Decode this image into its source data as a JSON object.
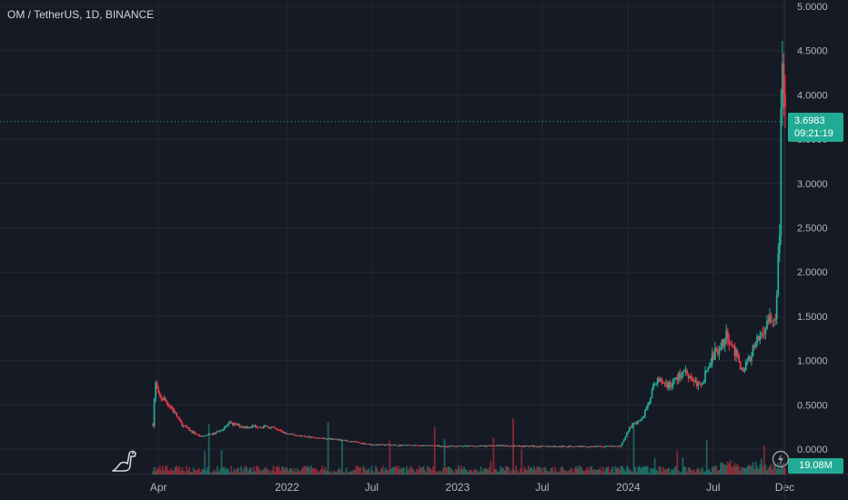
{
  "title": "OM / TetherUS, 1D, BINANCE",
  "last_price": "3.6983",
  "countdown": "09:21:19",
  "volume_label": "19.08M",
  "colors": {
    "bg": "#161a25",
    "grid": "#232733",
    "up": "#22ab94",
    "down": "#f23645",
    "text": "#b2b5be",
    "tag": "#22ab94"
  },
  "icons": {
    "logo": "dinosaur-logo-icon",
    "bolt": "lightning-icon"
  },
  "chart_data": {
    "type": "candlestick",
    "x_ticks": [
      "Apr",
      "2022",
      "Jul",
      "2023",
      "Jul",
      "2024",
      "Jul",
      "Dec"
    ],
    "y_ticks": [
      "0.0000",
      "0.5000",
      "1.0000",
      "1.5000",
      "2.0000",
      "2.5000",
      "3.0000",
      "3.5000",
      "4.0000",
      "4.5000",
      "5.0000"
    ],
    "ylim": [
      0,
      5
    ],
    "last_price": 3.6983,
    "price_path": [
      {
        "date": "2021-03-20",
        "close": 0.28
      },
      {
        "date": "2021-03-25",
        "close": 0.75
      },
      {
        "date": "2021-04-01",
        "close": 0.6
      },
      {
        "date": "2021-04-15",
        "close": 0.55
      },
      {
        "date": "2021-05-01",
        "close": 0.45
      },
      {
        "date": "2021-05-20",
        "close": 0.28
      },
      {
        "date": "2021-06-10",
        "close": 0.2
      },
      {
        "date": "2021-07-01",
        "close": 0.14
      },
      {
        "date": "2021-08-01",
        "close": 0.18
      },
      {
        "date": "2021-09-01",
        "close": 0.29
      },
      {
        "date": "2021-10-01",
        "close": 0.25
      },
      {
        "date": "2021-11-01",
        "close": 0.26
      },
      {
        "date": "2021-12-01",
        "close": 0.24
      },
      {
        "date": "2022-01-01",
        "close": 0.17
      },
      {
        "date": "2022-03-01",
        "close": 0.13
      },
      {
        "date": "2022-05-01",
        "close": 0.1
      },
      {
        "date": "2022-07-01",
        "close": 0.05
      },
      {
        "date": "2022-10-01",
        "close": 0.04
      },
      {
        "date": "2023-01-01",
        "close": 0.03
      },
      {
        "date": "2023-04-01",
        "close": 0.04
      },
      {
        "date": "2023-07-01",
        "close": 0.03
      },
      {
        "date": "2023-10-01",
        "close": 0.03
      },
      {
        "date": "2023-12-15",
        "close": 0.03
      },
      {
        "date": "2024-01-05",
        "close": 0.25
      },
      {
        "date": "2024-02-01",
        "close": 0.35
      },
      {
        "date": "2024-03-01",
        "close": 0.78
      },
      {
        "date": "2024-04-01",
        "close": 0.72
      },
      {
        "date": "2024-05-01",
        "close": 0.9
      },
      {
        "date": "2024-06-01",
        "close": 0.7
      },
      {
        "date": "2024-07-01",
        "close": 1.05
      },
      {
        "date": "2024-08-01",
        "close": 1.3
      },
      {
        "date": "2024-09-01",
        "close": 0.88
      },
      {
        "date": "2024-10-01",
        "close": 1.18
      },
      {
        "date": "2024-10-25",
        "close": 1.45
      },
      {
        "date": "2024-11-12",
        "close": 1.45
      },
      {
        "date": "2024-11-20",
        "close": 2.5
      },
      {
        "date": "2024-11-24",
        "close": 4.5
      },
      {
        "date": "2024-11-28",
        "close": 4.0
      },
      {
        "date": "2024-12-02",
        "close": 3.7
      }
    ]
  }
}
